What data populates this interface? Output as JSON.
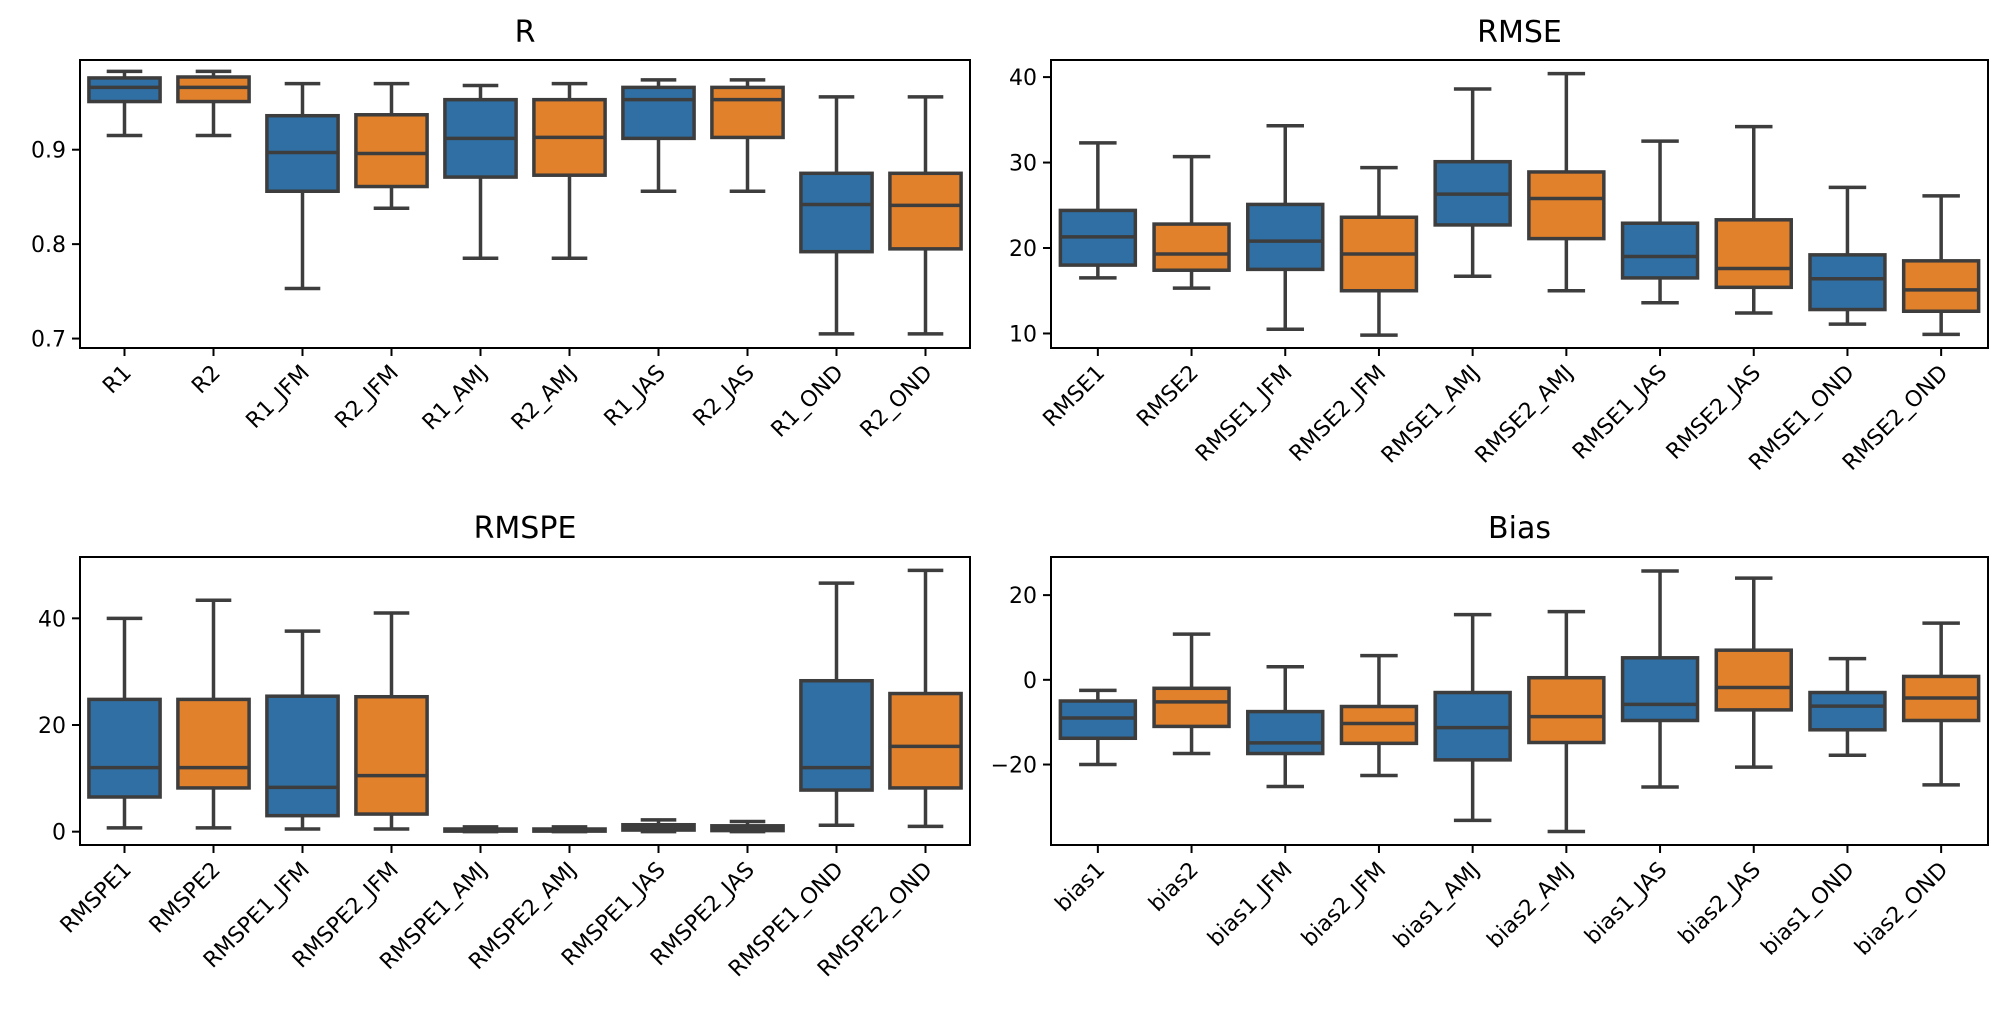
{
  "colors": {
    "blue": "#2f6fa3",
    "orange": "#e1812c",
    "line": "#3d3d3d"
  },
  "chart_data": [
    {
      "type": "box",
      "title": "R",
      "ylim": [
        0.69,
        0.995
      ],
      "yticks": [
        0.7,
        0.8,
        0.9
      ],
      "ytick_labels": [
        "0.7",
        "0.8",
        "0.9"
      ],
      "categories": [
        "R1",
        "R2",
        "R1_JFM",
        "R2_JFM",
        "R1_AMJ",
        "R2_AMJ",
        "R1_JAS",
        "R2_JAS",
        "R1_OND",
        "R2_OND"
      ],
      "series": [
        {
          "min": 0.915,
          "q1": 0.951,
          "median": 0.966,
          "q3": 0.976,
          "max": 0.983
        },
        {
          "min": 0.915,
          "q1": 0.951,
          "median": 0.966,
          "q3": 0.977,
          "max": 0.983
        },
        {
          "min": 0.753,
          "q1": 0.856,
          "median": 0.897,
          "q3": 0.936,
          "max": 0.97
        },
        {
          "min": 0.838,
          "q1": 0.861,
          "median": 0.896,
          "q3": 0.937,
          "max": 0.97
        },
        {
          "min": 0.785,
          "q1": 0.871,
          "median": 0.912,
          "q3": 0.953,
          "max": 0.968
        },
        {
          "min": 0.785,
          "q1": 0.873,
          "median": 0.913,
          "q3": 0.953,
          "max": 0.97
        },
        {
          "min": 0.856,
          "q1": 0.912,
          "median": 0.953,
          "q3": 0.966,
          "max": 0.974
        },
        {
          "min": 0.856,
          "q1": 0.913,
          "median": 0.953,
          "q3": 0.966,
          "max": 0.974
        },
        {
          "min": 0.705,
          "q1": 0.792,
          "median": 0.842,
          "q3": 0.875,
          "max": 0.956
        },
        {
          "min": 0.705,
          "q1": 0.795,
          "median": 0.841,
          "q3": 0.875,
          "max": 0.956
        }
      ]
    },
    {
      "type": "box",
      "title": "RMSE",
      "ylim": [
        8.3,
        42.0
      ],
      "yticks": [
        10,
        20,
        30,
        40
      ],
      "ytick_labels": [
        "10",
        "20",
        "30",
        "40"
      ],
      "categories": [
        "RMSE1",
        "RMSE2",
        "RMSE1_JFM",
        "RMSE2_JFM",
        "RMSE1_AMJ",
        "RMSE2_AMJ",
        "RMSE1_JAS",
        "RMSE2_JAS",
        "RMSE1_OND",
        "RMSE2_OND"
      ],
      "series": [
        {
          "min": 16.5,
          "q1": 18.0,
          "median": 21.3,
          "q3": 24.4,
          "max": 32.3
        },
        {
          "min": 15.3,
          "q1": 17.4,
          "median": 19.3,
          "q3": 22.8,
          "max": 30.7
        },
        {
          "min": 10.5,
          "q1": 17.5,
          "median": 20.8,
          "q3": 25.1,
          "max": 34.3
        },
        {
          "min": 9.8,
          "q1": 15.0,
          "median": 19.3,
          "q3": 23.6,
          "max": 29.4
        },
        {
          "min": 16.7,
          "q1": 22.7,
          "median": 26.3,
          "q3": 30.1,
          "max": 38.6
        },
        {
          "min": 15.0,
          "q1": 21.1,
          "median": 25.8,
          "q3": 28.9,
          "max": 40.4
        },
        {
          "min": 13.6,
          "q1": 16.5,
          "median": 19.0,
          "q3": 22.9,
          "max": 32.5
        },
        {
          "min": 12.4,
          "q1": 15.4,
          "median": 17.6,
          "q3": 23.3,
          "max": 34.2
        },
        {
          "min": 11.1,
          "q1": 12.8,
          "median": 16.4,
          "q3": 19.2,
          "max": 27.1
        },
        {
          "min": 9.9,
          "q1": 12.6,
          "median": 15.1,
          "q3": 18.5,
          "max": 26.1
        }
      ]
    },
    {
      "type": "box",
      "title": "RMSPE",
      "ylim": [
        -2.5,
        51.5
      ],
      "yticks": [
        0,
        20,
        40
      ],
      "ytick_labels": [
        "0",
        "20",
        "40"
      ],
      "categories": [
        "RMSPE1",
        "RMSPE2",
        "RMSPE1_JFM",
        "RMSPE2_JFM",
        "RMSPE1_AMJ",
        "RMSPE2_AMJ",
        "RMSPE1_JAS",
        "RMSPE2_JAS",
        "RMSPE1_OND",
        "RMSPE2_OND"
      ],
      "series": [
        {
          "min": 0.7,
          "q1": 6.5,
          "median": 12.0,
          "q3": 24.8,
          "max": 40.0
        },
        {
          "min": 0.7,
          "q1": 8.2,
          "median": 12.0,
          "q3": 24.8,
          "max": 43.4
        },
        {
          "min": 0.5,
          "q1": 3.0,
          "median": 8.3,
          "q3": 25.4,
          "max": 37.6
        },
        {
          "min": 0.5,
          "q1": 3.3,
          "median": 10.5,
          "q3": 25.3,
          "max": 41.0
        },
        {
          "min": 0.0,
          "q1": 0.1,
          "median": 0.3,
          "q3": 0.5,
          "max": 0.9
        },
        {
          "min": 0.0,
          "q1": 0.1,
          "median": 0.3,
          "q3": 0.5,
          "max": 0.9
        },
        {
          "min": 0.0,
          "q1": 0.3,
          "median": 0.8,
          "q3": 1.3,
          "max": 2.2
        },
        {
          "min": 0.0,
          "q1": 0.2,
          "median": 0.6,
          "q3": 1.1,
          "max": 1.9
        },
        {
          "min": 1.2,
          "q1": 7.8,
          "median": 12.0,
          "q3": 28.3,
          "max": 46.6
        },
        {
          "min": 1.0,
          "q1": 8.2,
          "median": 16.0,
          "q3": 25.9,
          "max": 49.0
        }
      ]
    },
    {
      "type": "box",
      "title": "Bias",
      "ylim": [
        -39.0,
        29.0
      ],
      "yticks": [
        -20,
        0,
        20
      ],
      "ytick_labels": [
        "−20",
        "0",
        "20"
      ],
      "categories": [
        "bias1",
        "bias2",
        "bias1_JFM",
        "bias2_JFM",
        "bias1_AMJ",
        "bias2_AMJ",
        "bias1_JAS",
        "bias2_JAS",
        "bias1_OND",
        "bias2_OND"
      ],
      "series": [
        {
          "min": -20.0,
          "q1": -13.8,
          "median": -9.0,
          "q3": -5.0,
          "max": -2.5
        },
        {
          "min": -17.4,
          "q1": -11.0,
          "median": -5.2,
          "q3": -2.0,
          "max": 10.8
        },
        {
          "min": -25.2,
          "q1": -17.4,
          "median": -14.9,
          "q3": -7.5,
          "max": 3.1
        },
        {
          "min": -22.6,
          "q1": -15.0,
          "median": -10.3,
          "q3": -6.3,
          "max": 5.7
        },
        {
          "min": -33.2,
          "q1": -18.9,
          "median": -11.3,
          "q3": -3.0,
          "max": 15.4
        },
        {
          "min": -35.8,
          "q1": -14.8,
          "median": -8.7,
          "q3": 0.5,
          "max": 16.1
        },
        {
          "min": -25.3,
          "q1": -9.6,
          "median": -5.8,
          "q3": 5.2,
          "max": 25.7
        },
        {
          "min": -20.6,
          "q1": -7.1,
          "median": -1.8,
          "q3": 7.0,
          "max": 24.0
        },
        {
          "min": -17.8,
          "q1": -11.8,
          "median": -6.2,
          "q3": -3.0,
          "max": 5.0
        },
        {
          "min": -24.8,
          "q1": -9.6,
          "median": -4.3,
          "q3": 0.8,
          "max": 13.4
        }
      ]
    }
  ]
}
